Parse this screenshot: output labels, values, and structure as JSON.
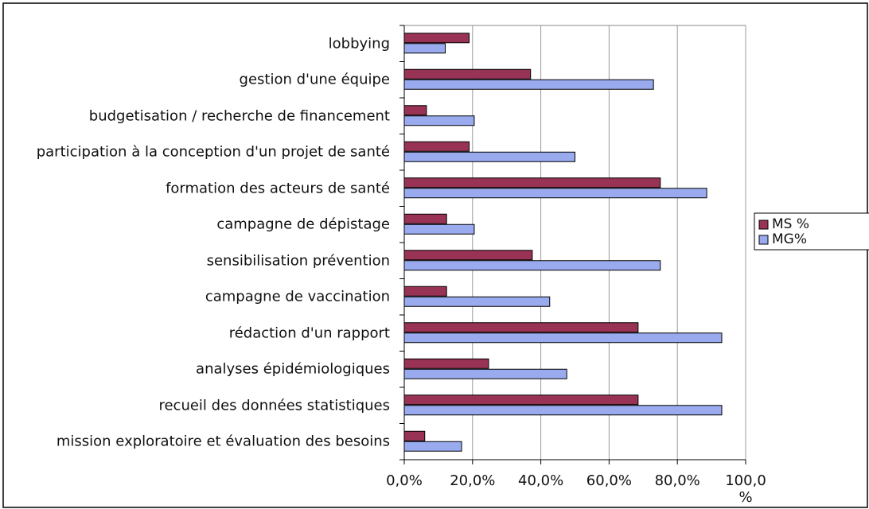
{
  "chart_data": {
    "type": "bar",
    "orientation": "horizontal",
    "categories": [
      "lobbying",
      "gestion d'une équipe",
      "budgetisation / recherche de financement",
      "participation à la conception d'un projet de santé",
      "formation des acteurs de santé",
      "campagne de dépistage",
      "sensibilisation prévention",
      "campagne de vaccination",
      "rédaction d'un rapport",
      "analyses épidémiologiques",
      "recueil des données statistiques",
      "mission exploratoire et évaluation des besoins"
    ],
    "series": [
      {
        "name": "MS %",
        "color": "#993355",
        "values": [
          19,
          37,
          6.5,
          19,
          75,
          12.4,
          37.5,
          12.4,
          68.5,
          24.7,
          68.5,
          6
        ]
      },
      {
        "name": "MG%",
        "color": "#99aaee",
        "values": [
          12,
          73,
          20.5,
          50,
          88.6,
          20.5,
          75,
          42.6,
          93,
          47.6,
          93,
          16.8
        ]
      }
    ],
    "xlim": [
      0,
      100
    ],
    "xticks": [
      {
        "value": 0,
        "label": "0,0%"
      },
      {
        "value": 20,
        "label": "20,0%"
      },
      {
        "value": 40,
        "label": "40,0%"
      },
      {
        "value": 60,
        "label": "60,0%"
      },
      {
        "value": 80,
        "label": "80,0%"
      },
      {
        "value": 100,
        "label": "100,0 %"
      }
    ],
    "grid": true,
    "legend": "right"
  }
}
